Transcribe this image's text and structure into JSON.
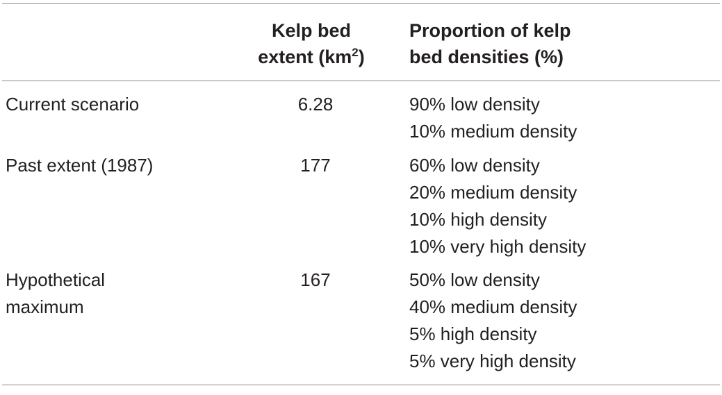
{
  "table": {
    "headers": {
      "col1": "",
      "col2_line1": "Kelp bed",
      "col2_line2_pre": "extent (km",
      "col2_line2_sup": "2",
      "col2_line2_post": ")",
      "col3_line1": "Proportion of kelp",
      "col3_line2": "bed densities (%)"
    },
    "rows": [
      {
        "scenario": [
          "Current scenario"
        ],
        "extent": "6.28",
        "densities": [
          "90% low density",
          "10% medium density"
        ]
      },
      {
        "scenario": [
          "Past extent (1987)"
        ],
        "extent": "177",
        "densities": [
          "60% low density",
          "20% medium density",
          "10% high density",
          "10% very high density"
        ]
      },
      {
        "scenario": [
          "Hypothetical",
          "maximum"
        ],
        "extent": "167",
        "densities": [
          "50% low density",
          "40% medium density",
          "5% high density",
          "5% very high density"
        ]
      }
    ]
  }
}
